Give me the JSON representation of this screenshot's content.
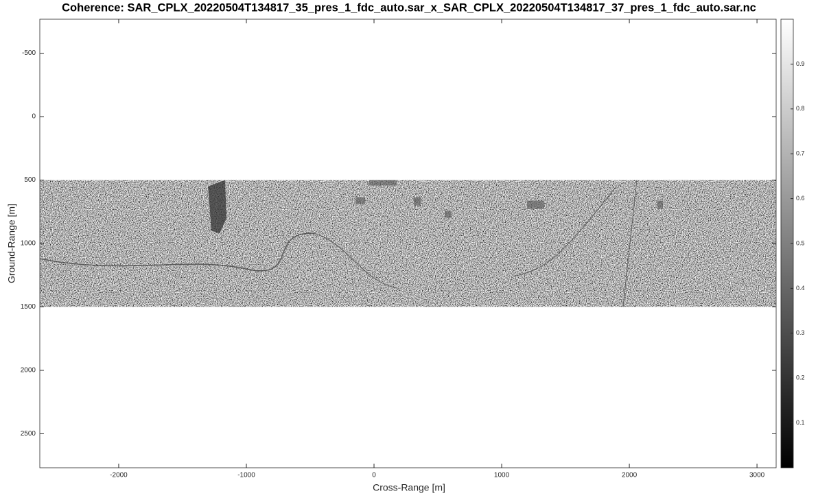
{
  "chart_data": {
    "type": "image",
    "title": "Coherence: SAR_CPLX_20220504T134817_35_pres_1_fdc_auto.sar_x_SAR_CPLX_20220504T134817_37_pres_1_fdc_auto.sar.nc",
    "x_label": "Cross-Range [m]",
    "y_label": "Ground-Range [m]",
    "xlim": [
      -2618,
      3150
    ],
    "xticks": [
      -2000,
      -1000,
      0,
      1000,
      2000,
      3000
    ],
    "ylim": [
      -768,
      2768
    ],
    "yticks": [
      -500,
      0,
      500,
      1000,
      1500,
      2000,
      2500
    ],
    "y_reversed": true,
    "image_x": [
      -2618,
      3150
    ],
    "image_y": [
      500,
      1500
    ],
    "colormap": [
      "#000000",
      "#ffffff"
    ],
    "clim": [
      0,
      1
    ],
    "cticks": [
      0.1,
      0.2,
      0.3,
      0.4,
      0.5,
      0.6,
      0.7,
      0.8,
      0.9
    ]
  }
}
